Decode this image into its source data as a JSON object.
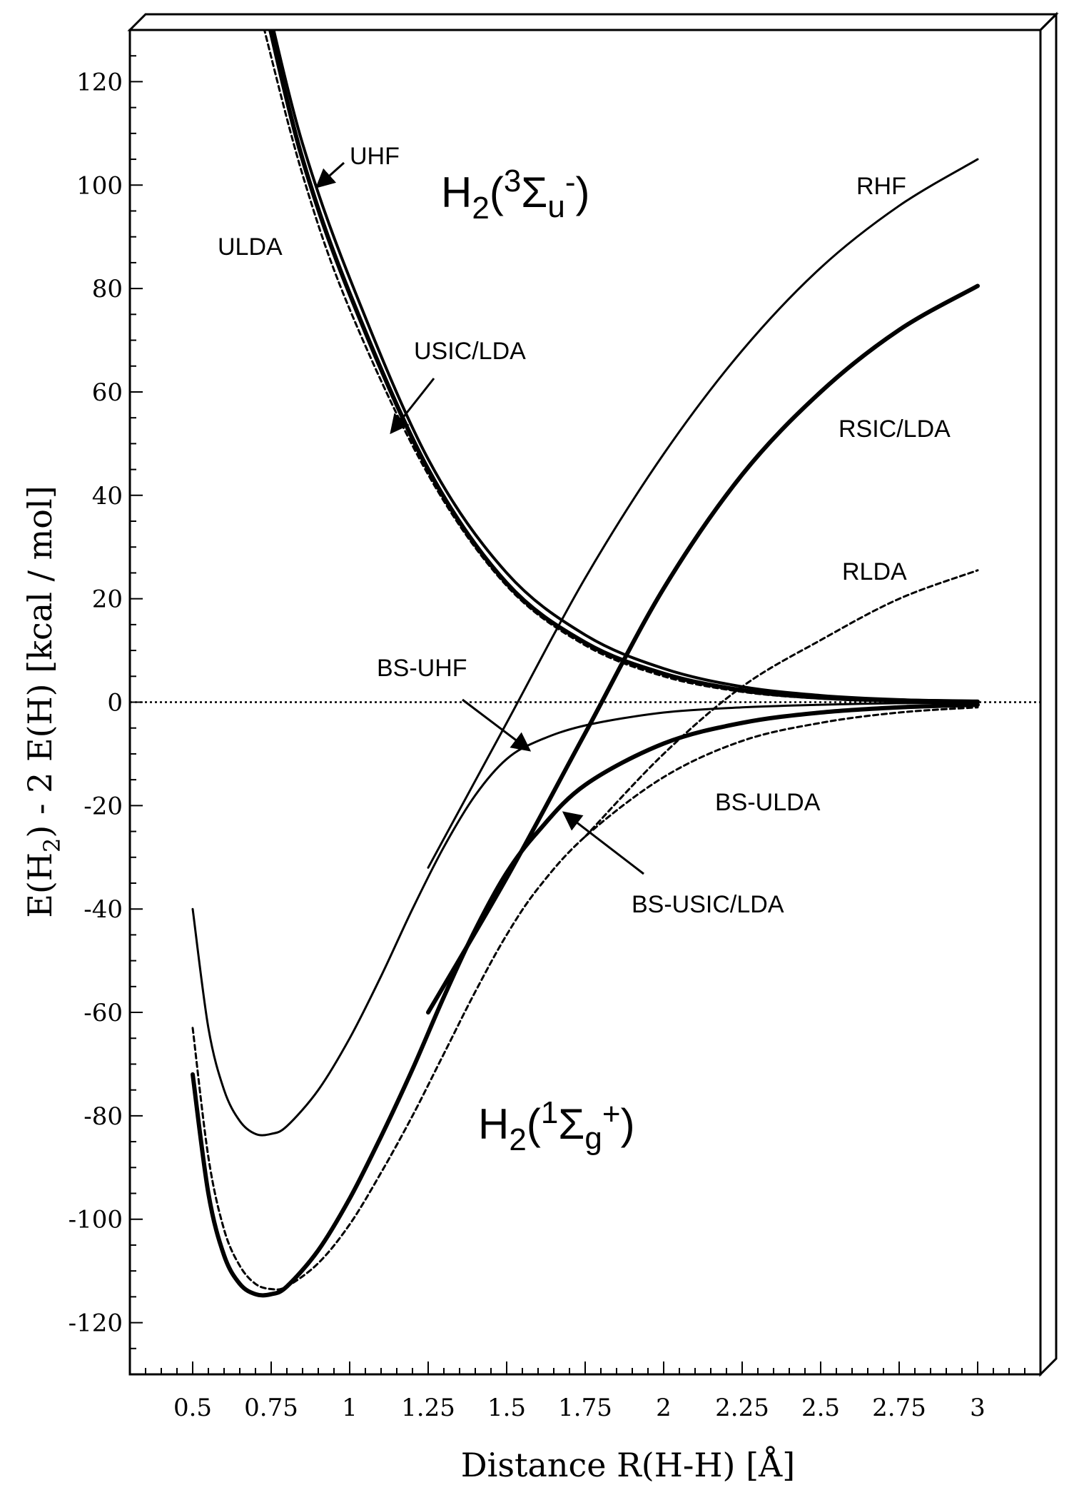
{
  "chart_data": {
    "type": "line",
    "xlabel": "Distance R(H-H)  [Å]",
    "ylabel_parts": {
      "pre": "E(H",
      "sub": "2",
      "post": ") - 2 E(H)  [kcal / mol]"
    },
    "xlim": [
      0.3,
      3.2
    ],
    "ylim": [
      -130,
      130
    ],
    "x_ticks": [
      0.5,
      0.75,
      1,
      1.25,
      1.5,
      1.75,
      2,
      2.25,
      2.5,
      2.75,
      3
    ],
    "x_tick_labels": [
      "0.5",
      "0.75",
      "1",
      "1.25",
      "1.5",
      "1.75",
      "2",
      "2.25",
      "2.5",
      "2.75",
      "3"
    ],
    "y_ticks": [
      -120,
      -100,
      -80,
      -60,
      -40,
      -20,
      0,
      20,
      40,
      60,
      80,
      100,
      120
    ],
    "y_tick_labels": [
      "-120",
      "-100",
      "-80",
      "-60",
      "-40",
      "-20",
      "0",
      "20",
      "40",
      "60",
      "80",
      "100",
      "120"
    ],
    "reference_line": {
      "y": 0,
      "style": "dotted"
    },
    "states": {
      "triplet": {
        "base": "H",
        "sub": "2",
        "open": "(",
        "sup": "3",
        "sym": "Σ",
        "sym_sub": "u",
        "sym_sup": "-",
        "close": ")"
      },
      "singlet": {
        "base": "H",
        "sub": "2",
        "open": "(",
        "sup": "1",
        "sym": "Σ",
        "sym_sub": "g",
        "sym_sup": "+",
        "close": ")"
      }
    },
    "series": [
      {
        "name": "UHF",
        "style": "solid",
        "weight": "medium",
        "x": [
          0.75,
          0.85,
          1.0,
          1.25,
          1.5,
          1.75,
          2.0,
          2.25,
          2.5,
          2.75,
          3.0
        ],
        "y": [
          132,
          108,
          82,
          47,
          25,
          13,
          6.5,
          3,
          1.3,
          0.5,
          0.2
        ]
      },
      {
        "name": "USIC/LDA",
        "style": "solid",
        "weight": "heavy",
        "x": [
          0.74,
          0.85,
          1.0,
          1.25,
          1.5,
          1.75,
          2.0,
          2.25,
          2.5,
          2.75,
          3.0
        ],
        "y": [
          132,
          105,
          79,
          45,
          23,
          11.5,
          5.5,
          2.3,
          0.9,
          0.3,
          0.1
        ]
      },
      {
        "name": "ULDA",
        "style": "dashed",
        "weight": "thin",
        "x": [
          0.72,
          0.85,
          1.0,
          1.25,
          1.5,
          1.75,
          2.0,
          2.25,
          2.5,
          2.75,
          3.0
        ],
        "y": [
          132,
          102,
          76,
          44,
          22.5,
          11,
          5,
          2,
          0.7,
          0.2,
          0.05
        ]
      },
      {
        "name": "RHF",
        "style": "solid",
        "weight": "thin",
        "x": [
          1.25,
          1.5,
          1.75,
          2.0,
          2.25,
          2.5,
          2.75,
          3.0
        ],
        "y": [
          -32,
          -4,
          24,
          48,
          68,
          84,
          96,
          105
        ]
      },
      {
        "name": "RSIC/LDA",
        "style": "solid",
        "weight": "heavy",
        "x": [
          1.25,
          1.5,
          1.75,
          2.0,
          2.25,
          2.5,
          2.75,
          3.0
        ],
        "y": [
          -60,
          -34,
          -6,
          22,
          44,
          60,
          72,
          80.5
        ]
      },
      {
        "name": "RLDA",
        "style": "dashed",
        "weight": "thin",
        "x": [
          1.75,
          2.0,
          2.25,
          2.5,
          2.75,
          3.0
        ],
        "y": [
          -26,
          -10,
          3,
          12,
          20,
          25.5
        ]
      },
      {
        "name": "BS-UHF",
        "style": "solid",
        "weight": "thin",
        "x": [
          0.5,
          0.55,
          0.6,
          0.65,
          0.7,
          0.75,
          0.8,
          0.9,
          1.0,
          1.1,
          1.2,
          1.3,
          1.4,
          1.5,
          1.6,
          1.75,
          2.0,
          2.25,
          2.5,
          2.75,
          3.0
        ],
        "y": [
          -40,
          -63,
          -75,
          -81,
          -83.5,
          -83.5,
          -82,
          -75,
          -65,
          -53,
          -40,
          -28,
          -18,
          -11,
          -7.5,
          -4.5,
          -2,
          -1,
          -0.5,
          -0.2,
          -0.1
        ]
      },
      {
        "name": "BS-USIC/LDA",
        "style": "solid",
        "weight": "heavy",
        "x": [
          0.5,
          0.55,
          0.6,
          0.65,
          0.7,
          0.75,
          0.8,
          0.9,
          1.0,
          1.1,
          1.2,
          1.3,
          1.4,
          1.5,
          1.6,
          1.75,
          2.0,
          2.25,
          2.5,
          2.75,
          3.0
        ],
        "y": [
          -72,
          -95,
          -107,
          -112.5,
          -114.5,
          -114.5,
          -113,
          -106,
          -96,
          -84,
          -71,
          -57,
          -44,
          -33,
          -25,
          -16,
          -8,
          -4,
          -2,
          -1,
          -0.5
        ]
      },
      {
        "name": "BS-ULDA",
        "style": "dashed",
        "weight": "thin",
        "x": [
          0.5,
          0.55,
          0.6,
          0.65,
          0.7,
          0.75,
          0.8,
          0.9,
          1.0,
          1.1,
          1.2,
          1.3,
          1.4,
          1.5,
          1.6,
          1.75,
          2.0,
          2.25,
          2.5,
          2.75,
          3.0
        ],
        "y": [
          -63,
          -88,
          -102,
          -109,
          -112.5,
          -113.5,
          -113,
          -108.5,
          -101,
          -91,
          -80,
          -68,
          -56,
          -45,
          -36,
          -26,
          -14.5,
          -7.5,
          -4,
          -2,
          -1
        ]
      }
    ],
    "annotations": [
      {
        "label": "UHF",
        "arrow": true
      },
      {
        "label": "ULDA",
        "arrow": false
      },
      {
        "label": "USIC/LDA",
        "arrow": true
      },
      {
        "label": "RHF",
        "arrow": false
      },
      {
        "label": "RSIC/LDA",
        "arrow": false
      },
      {
        "label": "RLDA",
        "arrow": false
      },
      {
        "label": "BS-UHF",
        "arrow": true
      },
      {
        "label": "BS-ULDA",
        "arrow": false
      },
      {
        "label": "BS-USIC/LDA",
        "arrow": true
      }
    ]
  }
}
